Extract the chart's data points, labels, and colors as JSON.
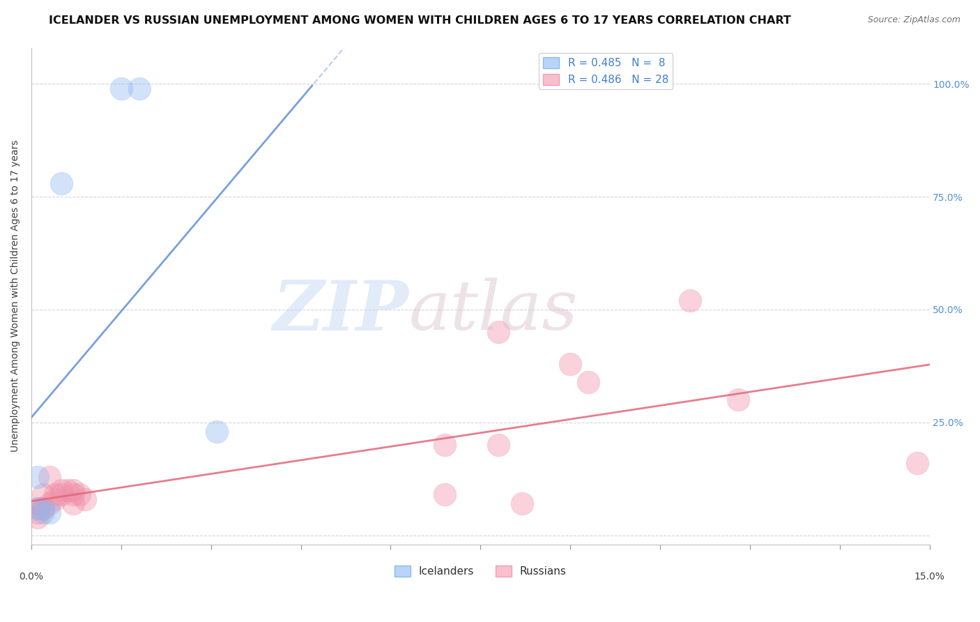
{
  "title": "ICELANDER VS RUSSIAN UNEMPLOYMENT AMONG WOMEN WITH CHILDREN AGES 6 TO 17 YEARS CORRELATION CHART",
  "source": "Source: ZipAtlas.com",
  "ylabel": "Unemployment Among Women with Children Ages 6 to 17 years",
  "yticks": [
    0.0,
    0.25,
    0.5,
    0.75,
    1.0
  ],
  "ytick_labels": [
    "",
    "25.0%",
    "50.0%",
    "75.0%",
    "100.0%"
  ],
  "xlim": [
    0.0,
    0.15
  ],
  "ylim": [
    -0.02,
    1.08
  ],
  "icelander_color": "#90b8f0",
  "russian_color": "#f090a8",
  "icelander_line_color": "#6090d8",
  "russian_line_color": "#e06878",
  "icelander_points": [
    [
      0.001,
      0.13
    ],
    [
      0.001,
      0.06
    ],
    [
      0.002,
      0.05
    ],
    [
      0.003,
      0.05
    ],
    [
      0.015,
      0.99
    ],
    [
      0.018,
      0.99
    ],
    [
      0.005,
      0.78
    ],
    [
      0.031,
      0.23
    ]
  ],
  "russian_points": [
    [
      0.001,
      0.04
    ],
    [
      0.001,
      0.06
    ],
    [
      0.001,
      0.05
    ],
    [
      0.002,
      0.06
    ],
    [
      0.002,
      0.09
    ],
    [
      0.002,
      0.06
    ],
    [
      0.003,
      0.07
    ],
    [
      0.003,
      0.13
    ],
    [
      0.004,
      0.09
    ],
    [
      0.004,
      0.08
    ],
    [
      0.005,
      0.1
    ],
    [
      0.005,
      0.09
    ],
    [
      0.006,
      0.1
    ],
    [
      0.007,
      0.09
    ],
    [
      0.007,
      0.1
    ],
    [
      0.007,
      0.07
    ],
    [
      0.008,
      0.09
    ],
    [
      0.009,
      0.08
    ],
    [
      0.069,
      0.2
    ],
    [
      0.069,
      0.09
    ],
    [
      0.078,
      0.45
    ],
    [
      0.078,
      0.2
    ],
    [
      0.082,
      0.07
    ],
    [
      0.09,
      0.38
    ],
    [
      0.093,
      0.34
    ],
    [
      0.11,
      0.52
    ],
    [
      0.118,
      0.3
    ],
    [
      0.148,
      0.16
    ]
  ],
  "title_fontsize": 11.5,
  "axis_label_fontsize": 10,
  "tick_fontsize": 10,
  "legend_fontsize": 11,
  "source_fontsize": 9
}
